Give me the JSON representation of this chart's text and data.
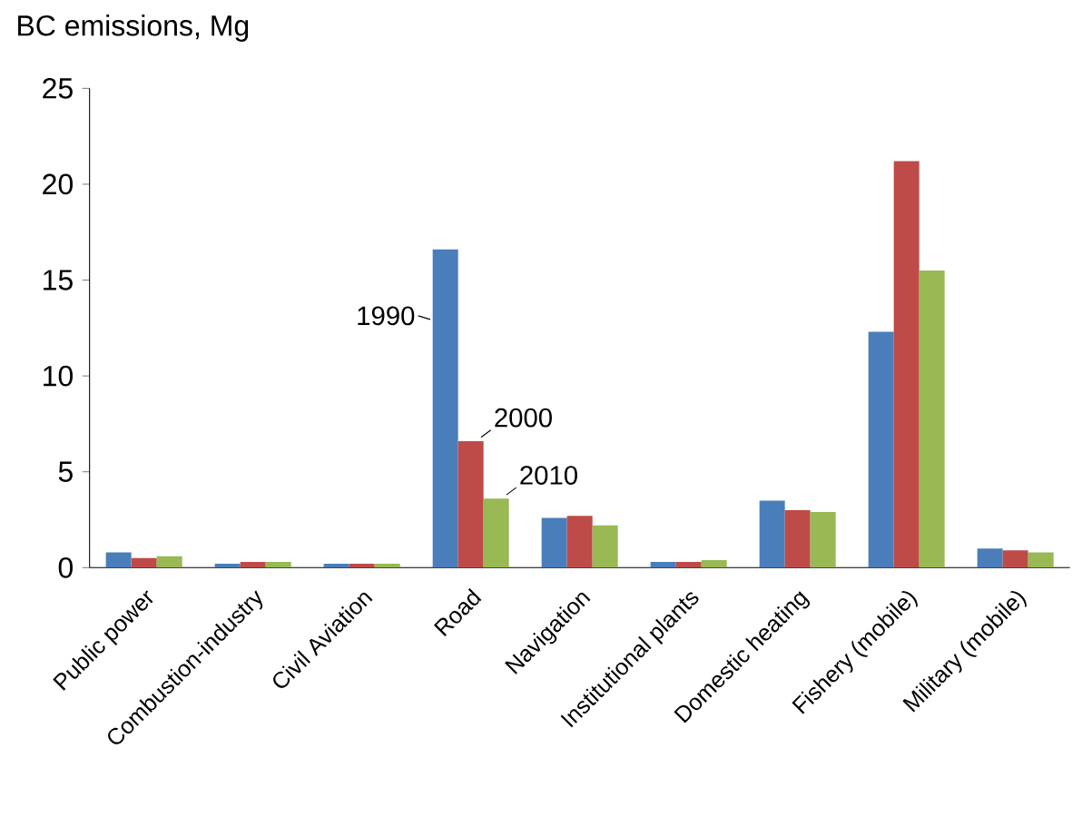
{
  "chart_data": {
    "type": "bar",
    "ylabel": "BC emissions, Mg",
    "categories": [
      "Public power",
      "Combustion-industry",
      "Civil Aviation",
      "Road",
      "Navigation",
      "Institutional plants",
      "Domestic heating",
      "Fishery (mobile)",
      "Military (mobile)"
    ],
    "series": [
      {
        "name": "1990",
        "color": "#4a7ebb",
        "values": [
          0.8,
          0.2,
          0.2,
          16.6,
          2.6,
          0.3,
          3.5,
          12.3,
          1.0
        ]
      },
      {
        "name": "2000",
        "color": "#be4b48",
        "values": [
          0.5,
          0.3,
          0.2,
          6.6,
          2.7,
          0.3,
          3.0,
          21.2,
          0.9
        ]
      },
      {
        "name": "2010",
        "color": "#98b954",
        "values": [
          0.6,
          0.3,
          0.2,
          3.6,
          2.2,
          0.4,
          2.9,
          15.5,
          0.8
        ]
      }
    ],
    "ylim": [
      0,
      25
    ],
    "yticks": [
      0,
      5,
      10,
      15,
      20,
      25
    ],
    "grid": false
  }
}
